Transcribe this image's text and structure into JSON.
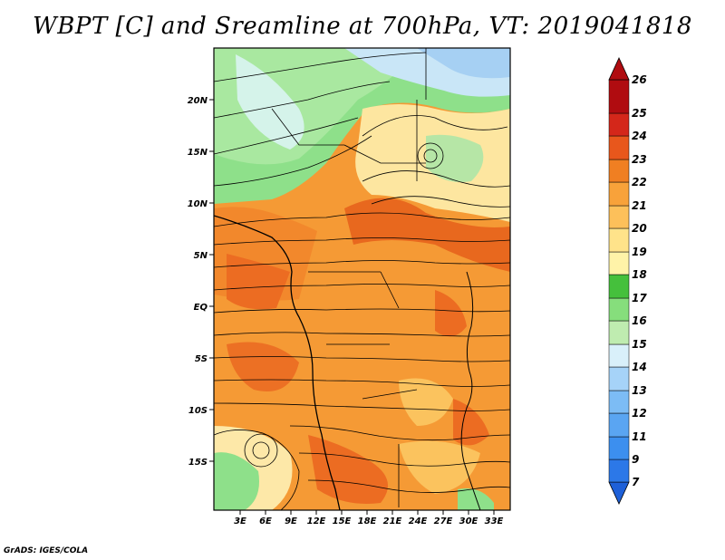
{
  "title": "WBPT [C] and Sreamline at 700hPa, VT: 2019041818",
  "credit": "GrADS: IGES/COLA",
  "lat_labels": [
    "20N",
    "15N",
    "10N",
    "5N",
    "EQ",
    "5S",
    "10S",
    "15S"
  ],
  "lon_labels": [
    "3E",
    "6E",
    "9E",
    "12E",
    "15E",
    "18E",
    "21E",
    "24E",
    "27E",
    "30E",
    "33E"
  ],
  "colorbar": {
    "levels": [
      "7",
      "9",
      "11",
      "12",
      "13",
      "14",
      "15",
      "16",
      "17",
      "18",
      "19",
      "20",
      "21",
      "22",
      "23",
      "24",
      "25",
      "26"
    ],
    "colors": [
      "#1e60d8",
      "#2c78e8",
      "#3c8fef",
      "#5aa5f2",
      "#7cbcf5",
      "#a6d3f8",
      "#d9f0fa",
      "#bfecb0",
      "#86de7c",
      "#45c03c",
      "#fff3a8",
      "#ffe38a",
      "#fdc05a",
      "#f8a23a",
      "#f07f22",
      "#e8571c",
      "#d4271a",
      "#b00c10"
    ]
  }
}
